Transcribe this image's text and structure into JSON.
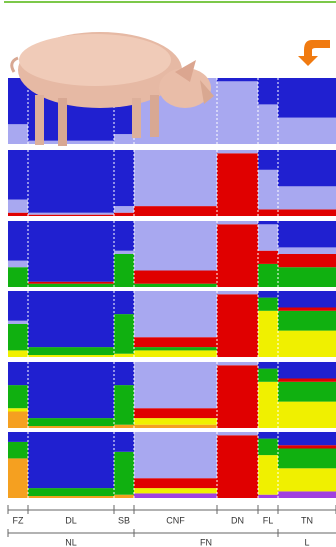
{
  "chart_data": {
    "type": "admixture",
    "populations": [
      "FZ",
      "DL",
      "SB",
      "CNF",
      "DN",
      "FL",
      "TN"
    ],
    "groups": [
      "NL",
      "FN",
      "L"
    ],
    "components": [
      {
        "color": "#a040e0"
      },
      {
        "color": "#f5a020"
      },
      {
        "color": "#f0f000"
      },
      {
        "color": "#10b010"
      },
      {
        "color": "#e00000"
      },
      {
        "color": "#a8a8f0"
      },
      {
        "color": "#2020d0"
      }
    ],
    "ylim": [
      0,
      100
    ],
    "panels": [
      {
        "values": [
          [
            0,
            0,
            0,
            0,
            0,
            30,
            70
          ],
          [
            0,
            0,
            0,
            0,
            0,
            5,
            95
          ],
          [
            0,
            0,
            0,
            0,
            0,
            15,
            85
          ],
          [
            0,
            0,
            0,
            0,
            0,
            100,
            0
          ],
          [
            0,
            0,
            0,
            0,
            0,
            95,
            5
          ],
          [
            0,
            0,
            0,
            0,
            0,
            60,
            40
          ],
          [
            0,
            0,
            0,
            0,
            0,
            40,
            60
          ]
        ]
      },
      {
        "values": [
          [
            0,
            0,
            0,
            0,
            5,
            20,
            75
          ],
          [
            0,
            0,
            0,
            0,
            2,
            3,
            95
          ],
          [
            0,
            0,
            0,
            0,
            5,
            10,
            85
          ],
          [
            0,
            0,
            0,
            0,
            15,
            85,
            0
          ],
          [
            0,
            0,
            0,
            0,
            95,
            5,
            0
          ],
          [
            0,
            0,
            0,
            0,
            10,
            60,
            30
          ],
          [
            0,
            0,
            0,
            0,
            10,
            35,
            55
          ]
        ]
      },
      {
        "values": [
          [
            0,
            0,
            0,
            30,
            0,
            10,
            60
          ],
          [
            0,
            0,
            0,
            5,
            3,
            0,
            92
          ],
          [
            0,
            0,
            0,
            50,
            0,
            5,
            45
          ],
          [
            0,
            0,
            0,
            5,
            20,
            75,
            0
          ],
          [
            0,
            0,
            0,
            0,
            95,
            5,
            0
          ],
          [
            0,
            0,
            0,
            35,
            20,
            40,
            5
          ],
          [
            0,
            0,
            0,
            30,
            20,
            10,
            40
          ]
        ]
      },
      {
        "values": [
          [
            0,
            0,
            10,
            40,
            0,
            5,
            45
          ],
          [
            0,
            0,
            3,
            12,
            0,
            0,
            85
          ],
          [
            0,
            0,
            5,
            60,
            0,
            0,
            35
          ],
          [
            0,
            0,
            10,
            5,
            15,
            70,
            0
          ],
          [
            0,
            0,
            0,
            0,
            95,
            5,
            0
          ],
          [
            0,
            0,
            70,
            20,
            0,
            0,
            10
          ],
          [
            0,
            0,
            40,
            30,
            5,
            0,
            25
          ]
        ]
      },
      {
        "values": [
          [
            0,
            25,
            5,
            35,
            0,
            0,
            35
          ],
          [
            0,
            3,
            0,
            12,
            0,
            0,
            85
          ],
          [
            0,
            5,
            0,
            60,
            0,
            0,
            35
          ],
          [
            0,
            5,
            10,
            0,
            15,
            70,
            0
          ],
          [
            0,
            0,
            0,
            0,
            95,
            5,
            0
          ],
          [
            0,
            0,
            70,
            20,
            0,
            0,
            10
          ],
          [
            0,
            0,
            40,
            30,
            5,
            0,
            25
          ]
        ]
      },
      {
        "values": [
          [
            0,
            60,
            0,
            25,
            0,
            0,
            15
          ],
          [
            0,
            3,
            0,
            12,
            0,
            0,
            85
          ],
          [
            0,
            5,
            0,
            65,
            0,
            0,
            30
          ],
          [
            7,
            0,
            8,
            0,
            15,
            70,
            0
          ],
          [
            0,
            0,
            0,
            0,
            95,
            5,
            0
          ],
          [
            5,
            0,
            60,
            25,
            0,
            0,
            10
          ],
          [
            10,
            0,
            35,
            30,
            5,
            0,
            20
          ]
        ]
      }
    ]
  }
}
